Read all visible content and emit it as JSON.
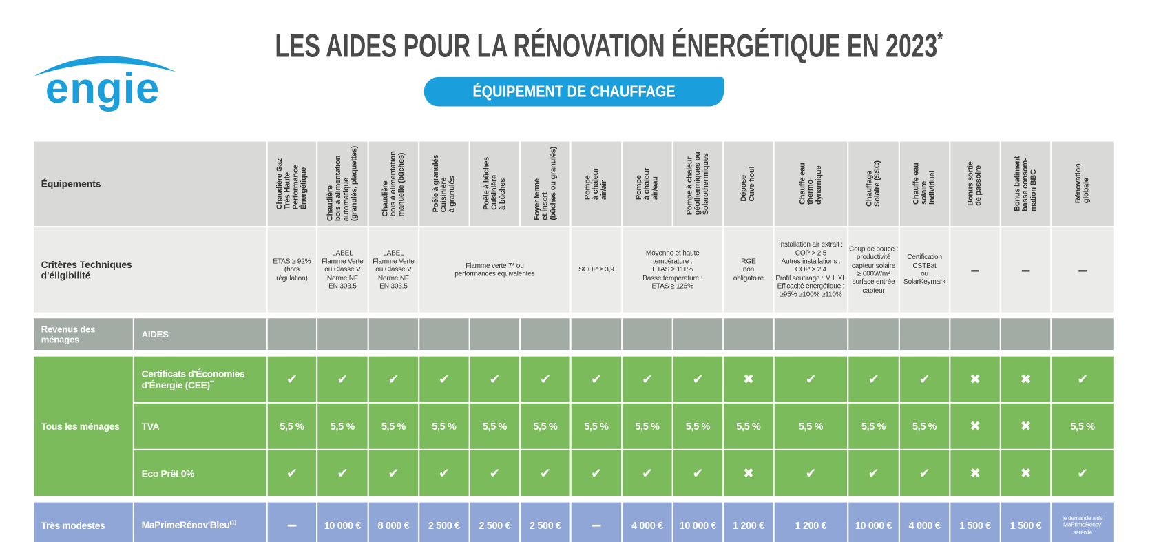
{
  "header": {
    "logo": "engie",
    "title": "LES AIDES POUR LA RÉNOVATION ÉNERGÉTIQUE EN 2023",
    "title_mark": "*",
    "subtitle": "ÉQUIPEMENT DE CHAUFFAGE"
  },
  "table": {
    "equipment_label": "Équipements",
    "equipments": [
      "Chaudière Gaz\nTrès Haute\nPerformance\nÉnergétique",
      "Chaudière\nbois à alimentation\nautomatique\n(granulés, plaquettes)",
      "Chaudière\nbois à alimentation\nmanuelle (bûches)",
      "Poêle à granulés\nCuisinière\nà granulés",
      "Poêle à bûches\nCuisinière\nà bûches",
      "Foyer fermé\net insert\n(bûches ou granulés)",
      "Pompe\nà chaleur\nair/air",
      "Pompe\nà chaleur\nair/eau",
      "Pompe à chaleur\ngéothermiques ou\nSolarothermiques",
      "Dépose\nCuve fioul",
      "Chauffe eau\nthermo-\ndynamique",
      "Chauffage\nSolaire (SSC)",
      "Chauffe eau\nsolaire\nindividuel",
      "Bonus sortie\nde passoire",
      "Bonus batiment\nbasse consom-\nmation BBC",
      "Rénovation\nglobale"
    ],
    "criteria_label": "Critères Techniques\nd'éligibilité",
    "criteria": [
      "ETAS ≥ 92%\n(hors\nrégulation)",
      "LABEL\nFlamme Verte\nou Classe V\nNorme NF\nEN 303.5",
      "LABEL\nFlamme Verte\nou Classe V\nNorme NF\nEN 303.5",
      "Flamme verte 7* ou\nperformances équivalentes",
      "SCOP ≥ 3,9",
      "Moyenne et haute\ntempérature :\nETAS ≥ 111%\nBasse température :\nETAS ≥ 126%",
      "RGE\nnon\nobligatoire",
      "Installation air extrait :\nCOP > 2,5\nAutres installations :\nCOP > 2,4\nProfil soutirage : M L XL\nEfficacité énergétique :\n≥95% ≥100% ≥110%",
      "Coup de pouce :\nproductivité\ncapteur solaire\n≥ 600W/m²\nsurface entrée\ncapteur",
      "Certification\nCSTBat\nou\nSolarKeymark",
      "–",
      "–",
      "–"
    ],
    "income_header": "Revenus des ménages",
    "aides_header": "AIDES",
    "groups": [
      {
        "income": "Tous les ménages",
        "rows": [
          {
            "aid": "Certificats d'Économies\nd'Énergie (CEE)",
            "aid_mark": "**",
            "values": [
              "✔",
              "✔",
              "✔",
              "✔",
              "✔",
              "✔",
              "✔",
              "✔",
              "✔",
              "✖",
              "✔",
              "✔",
              "✔",
              "✖",
              "✖",
              "✔"
            ]
          },
          {
            "aid": "TVA",
            "values": [
              "5,5 %",
              "5,5 %",
              "5,5 %",
              "5,5 %",
              "5,5 %",
              "5,5 %",
              "5,5 %",
              "5,5 %",
              "5,5 %",
              "5,5 %",
              "5,5 %",
              "5,5 %",
              "5,5 %",
              "✖",
              "✖",
              "5,5 %"
            ]
          },
          {
            "aid": "Eco Prêt 0%",
            "values": [
              "✔",
              "✔",
              "✔",
              "✔",
              "✔",
              "✔",
              "✔",
              "✔",
              "✔",
              "✖",
              "✔",
              "✔",
              "✔",
              "✖",
              "✖",
              "✔"
            ]
          }
        ]
      },
      {
        "income": "Très modestes",
        "rows": [
          {
            "aid": "MaPrimeRénov'Bleu",
            "aid_mark": "(1)",
            "values": [
              "–",
              "10 000 €",
              "8 000 €",
              "2 500 €",
              "2 500 €",
              "2 500 €",
              "–",
              "4 000 €",
              "10 000 €",
              "1 200 €",
              "1 200 €",
              "10 000 €",
              "4 000 €",
              "1 500 €",
              "1 500 €",
              "je demande aide\nMaPrimeRénov'\nsérénité"
            ]
          }
        ]
      }
    ]
  }
}
